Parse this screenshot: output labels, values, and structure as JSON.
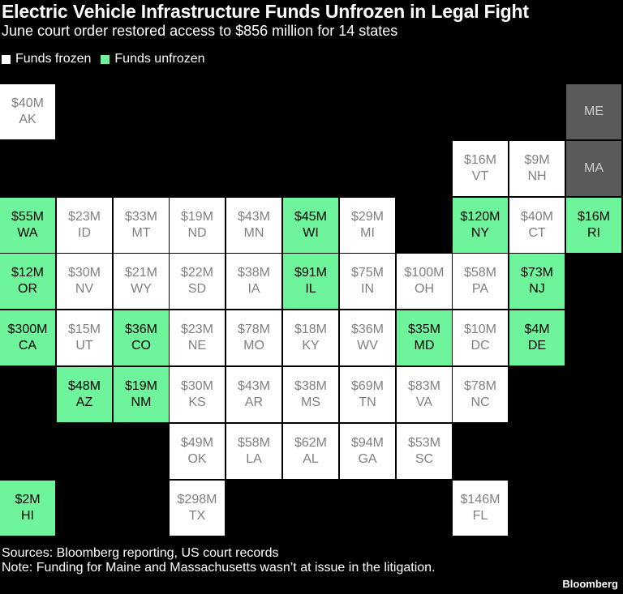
{
  "title": "Electric Vehicle Infrastructure Funds Unfrozen in Legal Fight",
  "subtitle": "June court order restored access to $856 million for 14 states",
  "legend": [
    {
      "label": "Funds frozen",
      "color": "#ffffff"
    },
    {
      "label": "Funds unfrozen",
      "color": "#6ef59b"
    }
  ],
  "colors": {
    "frozen": "#ffffff",
    "unfrozen": "#6ef59b",
    "not_at_issue": "#5a5a5a"
  },
  "chart_data": {
    "type": "tile-map",
    "value_unit": "millions USD",
    "states": [
      {
        "state": "AK",
        "label": "$40M",
        "value": 40,
        "status": "frozen",
        "row": 0,
        "col": 0
      },
      {
        "state": "ME",
        "label": "",
        "value": null,
        "status": "not_at_issue",
        "row": 0,
        "col": 10
      },
      {
        "state": "VT",
        "label": "$16M",
        "value": 16,
        "status": "frozen",
        "row": 1,
        "col": 8
      },
      {
        "state": "NH",
        "label": "$9M",
        "value": 9,
        "status": "frozen",
        "row": 1,
        "col": 9
      },
      {
        "state": "MA",
        "label": "",
        "value": null,
        "status": "not_at_issue",
        "row": 1,
        "col": 10
      },
      {
        "state": "WA",
        "label": "$55M",
        "value": 55,
        "status": "unfrozen",
        "row": 2,
        "col": 0
      },
      {
        "state": "ID",
        "label": "$23M",
        "value": 23,
        "status": "frozen",
        "row": 2,
        "col": 1
      },
      {
        "state": "MT",
        "label": "$33M",
        "value": 33,
        "status": "frozen",
        "row": 2,
        "col": 2
      },
      {
        "state": "ND",
        "label": "$19M",
        "value": 19,
        "status": "frozen",
        "row": 2,
        "col": 3
      },
      {
        "state": "MN",
        "label": "$43M",
        "value": 43,
        "status": "frozen",
        "row": 2,
        "col": 4
      },
      {
        "state": "WI",
        "label": "$45M",
        "value": 45,
        "status": "unfrozen",
        "row": 2,
        "col": 5
      },
      {
        "state": "MI",
        "label": "$29M",
        "value": 29,
        "status": "frozen",
        "row": 2,
        "col": 6
      },
      {
        "state": "NY",
        "label": "$120M",
        "value": 120,
        "status": "unfrozen",
        "row": 2,
        "col": 8
      },
      {
        "state": "CT",
        "label": "$40M",
        "value": 40,
        "status": "frozen",
        "row": 2,
        "col": 9
      },
      {
        "state": "RI",
        "label": "$16M",
        "value": 16,
        "status": "unfrozen",
        "row": 2,
        "col": 10
      },
      {
        "state": "OR",
        "label": "$12M",
        "value": 12,
        "status": "unfrozen",
        "row": 3,
        "col": 0
      },
      {
        "state": "NV",
        "label": "$30M",
        "value": 30,
        "status": "frozen",
        "row": 3,
        "col": 1
      },
      {
        "state": "WY",
        "label": "$21M",
        "value": 21,
        "status": "frozen",
        "row": 3,
        "col": 2
      },
      {
        "state": "SD",
        "label": "$22M",
        "value": 22,
        "status": "frozen",
        "row": 3,
        "col": 3
      },
      {
        "state": "IA",
        "label": "$38M",
        "value": 38,
        "status": "frozen",
        "row": 3,
        "col": 4
      },
      {
        "state": "IL",
        "label": "$91M",
        "value": 91,
        "status": "unfrozen",
        "row": 3,
        "col": 5
      },
      {
        "state": "IN",
        "label": "$75M",
        "value": 75,
        "status": "frozen",
        "row": 3,
        "col": 6
      },
      {
        "state": "OH",
        "label": "$100M",
        "value": 100,
        "status": "frozen",
        "row": 3,
        "col": 7
      },
      {
        "state": "PA",
        "label": "$58M",
        "value": 58,
        "status": "frozen",
        "row": 3,
        "col": 8
      },
      {
        "state": "NJ",
        "label": "$73M",
        "value": 73,
        "status": "unfrozen",
        "row": 3,
        "col": 9
      },
      {
        "state": "CA",
        "label": "$300M",
        "value": 300,
        "status": "unfrozen",
        "row": 4,
        "col": 0
      },
      {
        "state": "UT",
        "label": "$15M",
        "value": 15,
        "status": "frozen",
        "row": 4,
        "col": 1
      },
      {
        "state": "CO",
        "label": "$36M",
        "value": 36,
        "status": "unfrozen",
        "row": 4,
        "col": 2
      },
      {
        "state": "NE",
        "label": "$23M",
        "value": 23,
        "status": "frozen",
        "row": 4,
        "col": 3
      },
      {
        "state": "MO",
        "label": "$78M",
        "value": 78,
        "status": "frozen",
        "row": 4,
        "col": 4
      },
      {
        "state": "KY",
        "label": "$18M",
        "value": 18,
        "status": "frozen",
        "row": 4,
        "col": 5
      },
      {
        "state": "WV",
        "label": "$36M",
        "value": 36,
        "status": "frozen",
        "row": 4,
        "col": 6
      },
      {
        "state": "MD",
        "label": "$35M",
        "value": 35,
        "status": "unfrozen",
        "row": 4,
        "col": 7
      },
      {
        "state": "DC",
        "label": "$10M",
        "value": 10,
        "status": "frozen",
        "row": 4,
        "col": 8
      },
      {
        "state": "DE",
        "label": "$4M",
        "value": 4,
        "status": "unfrozen",
        "row": 4,
        "col": 9
      },
      {
        "state": "AZ",
        "label": "$48M",
        "value": 48,
        "status": "unfrozen",
        "row": 5,
        "col": 1
      },
      {
        "state": "NM",
        "label": "$19M",
        "value": 19,
        "status": "unfrozen",
        "row": 5,
        "col": 2
      },
      {
        "state": "KS",
        "label": "$30M",
        "value": 30,
        "status": "frozen",
        "row": 5,
        "col": 3
      },
      {
        "state": "AR",
        "label": "$43M",
        "value": 43,
        "status": "frozen",
        "row": 5,
        "col": 4
      },
      {
        "state": "MS",
        "label": "$38M",
        "value": 38,
        "status": "frozen",
        "row": 5,
        "col": 5
      },
      {
        "state": "TN",
        "label": "$69M",
        "value": 69,
        "status": "frozen",
        "row": 5,
        "col": 6
      },
      {
        "state": "VA",
        "label": "$83M",
        "value": 83,
        "status": "frozen",
        "row": 5,
        "col": 7
      },
      {
        "state": "NC",
        "label": "$78M",
        "value": 78,
        "status": "frozen",
        "row": 5,
        "col": 8
      },
      {
        "state": "OK",
        "label": "$49M",
        "value": 49,
        "status": "frozen",
        "row": 6,
        "col": 3
      },
      {
        "state": "LA",
        "label": "$58M",
        "value": 58,
        "status": "frozen",
        "row": 6,
        "col": 4
      },
      {
        "state": "AL",
        "label": "$62M",
        "value": 62,
        "status": "frozen",
        "row": 6,
        "col": 5
      },
      {
        "state": "GA",
        "label": "$94M",
        "value": 94,
        "status": "frozen",
        "row": 6,
        "col": 6
      },
      {
        "state": "SC",
        "label": "$53M",
        "value": 53,
        "status": "frozen",
        "row": 6,
        "col": 7
      },
      {
        "state": "HI",
        "label": "$2M",
        "value": 2,
        "status": "unfrozen",
        "row": 7,
        "col": 0
      },
      {
        "state": "TX",
        "label": "$298M",
        "value": 298,
        "status": "frozen",
        "row": 7,
        "col": 3
      },
      {
        "state": "FL",
        "label": "$146M",
        "value": 146,
        "status": "frozen",
        "row": 7,
        "col": 8
      }
    ]
  },
  "footer": {
    "sources": "Sources: Bloomberg reporting, US court records",
    "note": "Note: Funding for Maine and Massachusetts wasn’t at issue in the litigation."
  },
  "brand": "Bloomberg"
}
